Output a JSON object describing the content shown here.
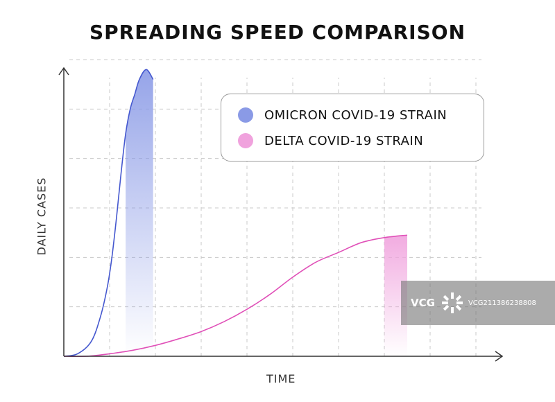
{
  "chart_data": {
    "type": "area",
    "title": "SPREADING SPEED COMPARISON",
    "xlabel": "TIME",
    "ylabel": "DAILY CASES",
    "xlim": [
      0,
      9
    ],
    "ylim": [
      0,
      6
    ],
    "grid": true,
    "legend_position": "top-right",
    "series": [
      {
        "name": "OMICRON COVID-19 STRAIN",
        "color": "#8a9ae6",
        "line_color": "#4558cf",
        "x": [
          0,
          0.3,
          0.6,
          0.8,
          0.95,
          1.05,
          1.15,
          1.25,
          1.35,
          1.45,
          1.55,
          1.65,
          1.8,
          1.95
        ],
        "y": [
          0,
          0.05,
          0.3,
          0.8,
          1.4,
          2.0,
          2.8,
          3.7,
          4.5,
          5.0,
          5.3,
          5.6,
          5.8,
          5.6
        ]
      },
      {
        "name": "DELTA COVID-19 STRAIN",
        "color": "#f0a2dd",
        "line_color": "#e050b8",
        "x": [
          0,
          0.5,
          1,
          1.5,
          2,
          2.5,
          3,
          3.5,
          4,
          4.5,
          5,
          5.5,
          6,
          6.5,
          7,
          7.5
        ],
        "y": [
          0,
          0.0,
          0.05,
          0.12,
          0.22,
          0.35,
          0.5,
          0.7,
          0.95,
          1.25,
          1.6,
          1.9,
          2.1,
          2.3,
          2.4,
          2.45
        ]
      }
    ]
  },
  "watermark": {
    "logo": "VCG",
    "id": "VCG211386238808"
  }
}
